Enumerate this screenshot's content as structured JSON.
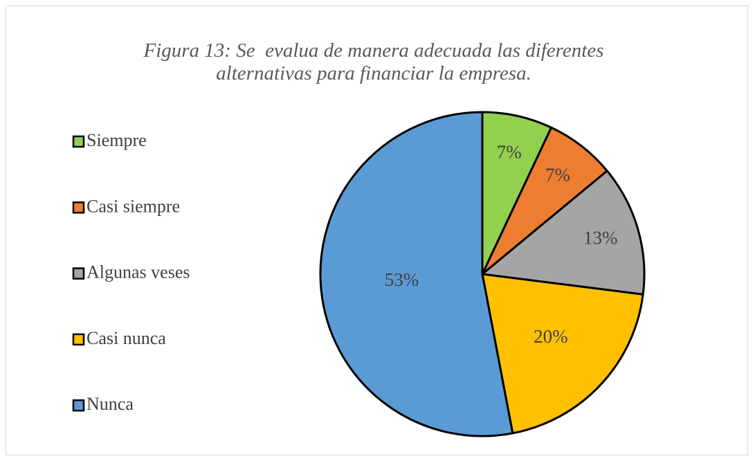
{
  "chart_data": {
    "type": "pie",
    "title": "Figura 13: Se  evalua de manera adecuada las diferentes alternativas para financiar la empresa.",
    "categories": [
      "Siempre",
      "Casi siempre",
      "Algunas veses",
      "Casi nunca",
      "Nunca"
    ],
    "values": [
      7,
      7,
      13,
      20,
      53
    ],
    "value_labels": [
      "7%",
      "7%",
      "13%",
      "20%",
      "53%"
    ],
    "colors": [
      "#92d050",
      "#ed7d31",
      "#a5a5a5",
      "#ffc000",
      "#5b9bd5"
    ],
    "legend": "left"
  }
}
